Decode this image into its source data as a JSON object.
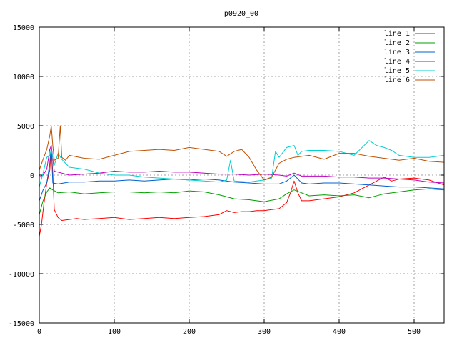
{
  "chart_data": {
    "type": "line",
    "title": "p0920_00",
    "xlabel": "",
    "ylabel": "",
    "xlim": [
      0,
      540
    ],
    "ylim": [
      -15000,
      15000
    ],
    "xticks": [
      0,
      100,
      200,
      300,
      400,
      500
    ],
    "yticks": [
      -15000,
      -10000,
      -5000,
      0,
      5000,
      10000,
      15000
    ],
    "grid": true,
    "legend_position": "top-right",
    "series": [
      {
        "name": "line 1",
        "color": "#ff0000",
        "x": [
          0,
          3,
          6,
          10,
          14,
          16,
          18,
          20,
          25,
          30,
          40,
          50,
          60,
          80,
          100,
          120,
          140,
          160,
          180,
          200,
          220,
          240,
          250,
          260,
          270,
          280,
          290,
          300,
          310,
          320,
          330,
          335,
          340,
          345,
          350,
          360,
          380,
          400,
          420,
          440,
          460,
          470,
          480,
          500,
          520,
          540
        ],
        "y": [
          -6200,
          -5000,
          -3000,
          -800,
          500,
          2800,
          200,
          -3500,
          -4300,
          -4600,
          -4500,
          -4400,
          -4500,
          -4400,
          -4300,
          -4500,
          -4400,
          -4300,
          -4400,
          -4300,
          -4200,
          -4000,
          -3600,
          -3800,
          -3700,
          -3700,
          -3600,
          -3600,
          -3500,
          -3400,
          -2800,
          -1800,
          -600,
          -1800,
          -2600,
          -2600,
          -2400,
          -2200,
          -1800,
          -1000,
          -200,
          -600,
          -400,
          -300,
          -500,
          -1000
        ]
      },
      {
        "name": "line 2",
        "color": "#00a000",
        "x": [
          0,
          5,
          10,
          14,
          18,
          25,
          40,
          60,
          80,
          100,
          120,
          140,
          160,
          180,
          200,
          220,
          240,
          260,
          280,
          300,
          320,
          330,
          340,
          360,
          380,
          400,
          420,
          440,
          460,
          480,
          500,
          520,
          540
        ],
        "y": [
          -4000,
          -2600,
          -1700,
          -1300,
          -1500,
          -1800,
          -1700,
          -1900,
          -1800,
          -1700,
          -1700,
          -1800,
          -1700,
          -1800,
          -1600,
          -1700,
          -2000,
          -2400,
          -2500,
          -2700,
          -2400,
          -1900,
          -1500,
          -2100,
          -2000,
          -2100,
          -2000,
          -2300,
          -1900,
          -1700,
          -1500,
          -1400,
          -1500
        ]
      },
      {
        "name": "line 3",
        "color": "#0060d0",
        "x": [
          0,
          5,
          10,
          14,
          16,
          18,
          25,
          40,
          60,
          80,
          100,
          120,
          140,
          160,
          180,
          200,
          220,
          240,
          260,
          280,
          300,
          320,
          330,
          340,
          350,
          360,
          380,
          400,
          420,
          440,
          460,
          480,
          500,
          520,
          540
        ],
        "y": [
          -2600,
          -1500,
          -800,
          1200,
          3000,
          -800,
          -900,
          -700,
          -700,
          -600,
          -600,
          -500,
          -600,
          -500,
          -400,
          -500,
          -400,
          -500,
          -700,
          -800,
          -900,
          -900,
          -600,
          0,
          -800,
          -900,
          -800,
          -800,
          -900,
          -1000,
          -1100,
          -1200,
          -1200,
          -1300,
          -1400
        ]
      },
      {
        "name": "line 4",
        "color": "#c000c0",
        "x": [
          0,
          5,
          10,
          14,
          16,
          20,
          30,
          40,
          60,
          80,
          100,
          120,
          140,
          160,
          180,
          200,
          220,
          240,
          260,
          280,
          300,
          320,
          330,
          340,
          350,
          360,
          380,
          400,
          420,
          440,
          460,
          480,
          500,
          520,
          540
        ],
        "y": [
          -200,
          0,
          600,
          2600,
          3000,
          400,
          200,
          0,
          100,
          200,
          400,
          300,
          300,
          400,
          300,
          300,
          200,
          100,
          100,
          0,
          100,
          0,
          -100,
          200,
          -100,
          -100,
          -100,
          -200,
          -200,
          -300,
          -300,
          -400,
          -500,
          -700,
          -800
        ]
      },
      {
        "name": "line 5",
        "color": "#00d0d0",
        "x": [
          0,
          5,
          10,
          14,
          16,
          20,
          25,
          30,
          40,
          60,
          80,
          100,
          120,
          140,
          160,
          180,
          200,
          220,
          240,
          250,
          255,
          260,
          280,
          290,
          300,
          310,
          315,
          320,
          330,
          340,
          345,
          350,
          360,
          380,
          400,
          420,
          440,
          450,
          460,
          470,
          480,
          500,
          520,
          540
        ],
        "y": [
          -1200,
          200,
          1800,
          2000,
          2600,
          1000,
          2200,
          1600,
          800,
          600,
          200,
          0,
          0,
          -200,
          -300,
          -400,
          -500,
          -600,
          -700,
          -500,
          1500,
          -600,
          -700,
          -600,
          -500,
          -300,
          2400,
          1800,
          2800,
          3000,
          2000,
          2400,
          2500,
          2500,
          2400,
          2000,
          3500,
          3000,
          2800,
          2500,
          2000,
          1800,
          1800,
          2000
        ]
      },
      {
        "name": "line 6",
        "color": "#c05000",
        "x": [
          0,
          5,
          10,
          12,
          14,
          16,
          18,
          20,
          25,
          28,
          30,
          35,
          40,
          60,
          80,
          100,
          120,
          140,
          160,
          180,
          200,
          220,
          240,
          250,
          260,
          270,
          280,
          290,
          300,
          310,
          320,
          330,
          340,
          360,
          380,
          400,
          420,
          440,
          460,
          480,
          500,
          520,
          540
        ],
        "y": [
          500,
          1600,
          2600,
          3300,
          4000,
          5000,
          3000,
          1500,
          1700,
          5000,
          1800,
          1500,
          2000,
          1700,
          1600,
          2000,
          2400,
          2500,
          2600,
          2500,
          2800,
          2600,
          2400,
          1900,
          2400,
          2600,
          1800,
          500,
          -500,
          -200,
          1200,
          1600,
          1800,
          2000,
          1600,
          2200,
          2200,
          1900,
          1700,
          1500,
          1700,
          1400,
          1300
        ]
      }
    ]
  }
}
